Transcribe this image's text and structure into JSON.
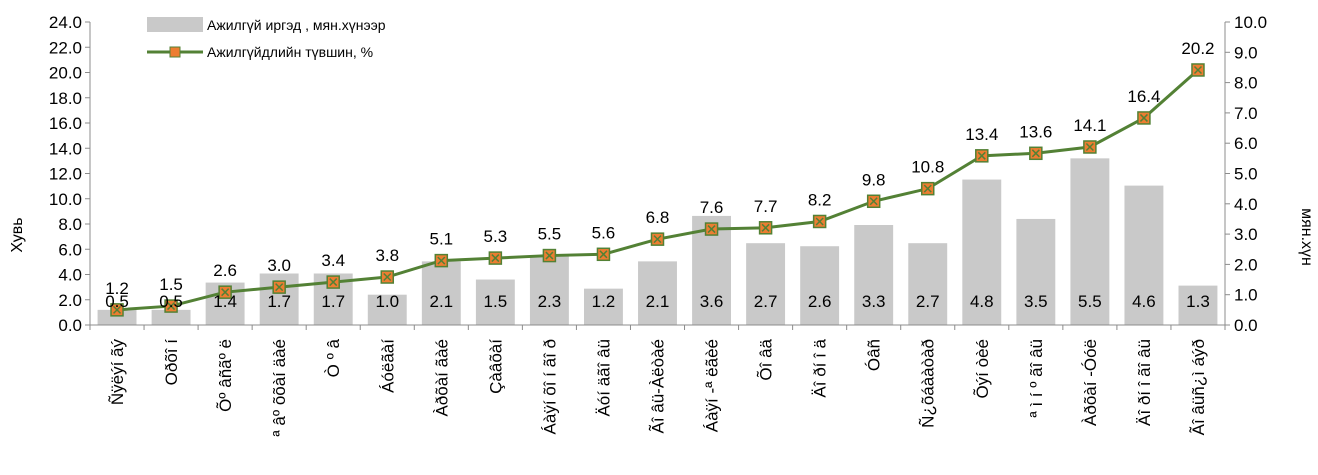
{
  "chart_data": {
    "type": "bar",
    "categories": [
      "Ñÿëýí ãý",
      "Oðõî í",
      "Õº âñãº ë",
      "ª âº õõàí äàé",
      "Ò º â",
      "Áóëãàí",
      "Àðõàí ãàé",
      "Çàâõàí",
      "Áàÿí õî í ãî ð",
      "Äóí äãî âü",
      "Ãî âü-Àëòàé",
      "Áàÿí -ª ëãèé",
      "Õî âä",
      "Äî ðí î ä",
      "Óâñ",
      "Ñ¿õáààòàð",
      "Õýí òèé",
      "ª ì í º ãî âü",
      "Àðõàí -Óóë",
      "Äî ðí î ãî âü",
      "Ãî âüñ¿ì áýð"
    ],
    "series": [
      {
        "name": "Ажилгүй иргэд , мян.хүнээр",
        "type": "bar",
        "axis": "right",
        "values": [
          0.5,
          0.5,
          1.4,
          1.7,
          1.7,
          1.0,
          2.1,
          1.5,
          2.3,
          1.2,
          2.1,
          3.6,
          2.7,
          2.6,
          3.3,
          2.7,
          4.8,
          3.5,
          5.5,
          4.6,
          1.3
        ],
        "labels": [
          "0.5",
          "0.5",
          "1.4",
          "1.7",
          "1.7",
          "1.0",
          "2.1",
          "1.5",
          "2.3",
          "1.2",
          "2.1",
          "3.6",
          "2.7",
          "2.6",
          "3.3",
          "2.7",
          "4.8",
          "3.5",
          "5.5",
          "4.6",
          "1.3"
        ]
      },
      {
        "name": "Ажилгүйдлийн түвшин, %",
        "type": "line",
        "axis": "left",
        "values": [
          1.2,
          1.5,
          2.6,
          3.0,
          3.4,
          3.8,
          5.1,
          5.3,
          5.5,
          5.6,
          6.8,
          7.6,
          7.7,
          8.2,
          9.8,
          10.8,
          13.4,
          13.6,
          14.1,
          16.4,
          20.2
        ],
        "labels": [
          "1.2",
          "1.5",
          "2.6",
          "3.0",
          "3.4",
          "3.8",
          "5.1",
          "5.3",
          "5.5",
          "5.6",
          "6.8",
          "7.6",
          "7.7",
          "8.2",
          "9.8",
          "10.8",
          "13.4",
          "13.6",
          "14.1",
          "16.4",
          "20.2"
        ]
      }
    ],
    "y_left": {
      "label": "Хувь",
      "ylim": [
        0,
        24
      ],
      "ticks": [
        "0.0",
        "2.0",
        "4.0",
        "6.0",
        "8.0",
        "10.0",
        "12.0",
        "14.0",
        "16.0",
        "18.0",
        "20.0",
        "22.0",
        "24.0"
      ]
    },
    "y_right": {
      "label": "мян.хүн",
      "ylim": [
        0,
        10
      ],
      "ticks": [
        "0.0",
        "1.0",
        "2.0",
        "3.0",
        "4.0",
        "5.0",
        "6.0",
        "7.0",
        "8.0",
        "9.0",
        "10.0"
      ]
    },
    "colors": {
      "bar": "#c9c9c9",
      "line": "#538135",
      "marker_fill": "#ed7d31",
      "marker_stroke": "#538135",
      "axis": "#8c8c8c"
    },
    "grid": false,
    "legend_position": "top-left"
  }
}
